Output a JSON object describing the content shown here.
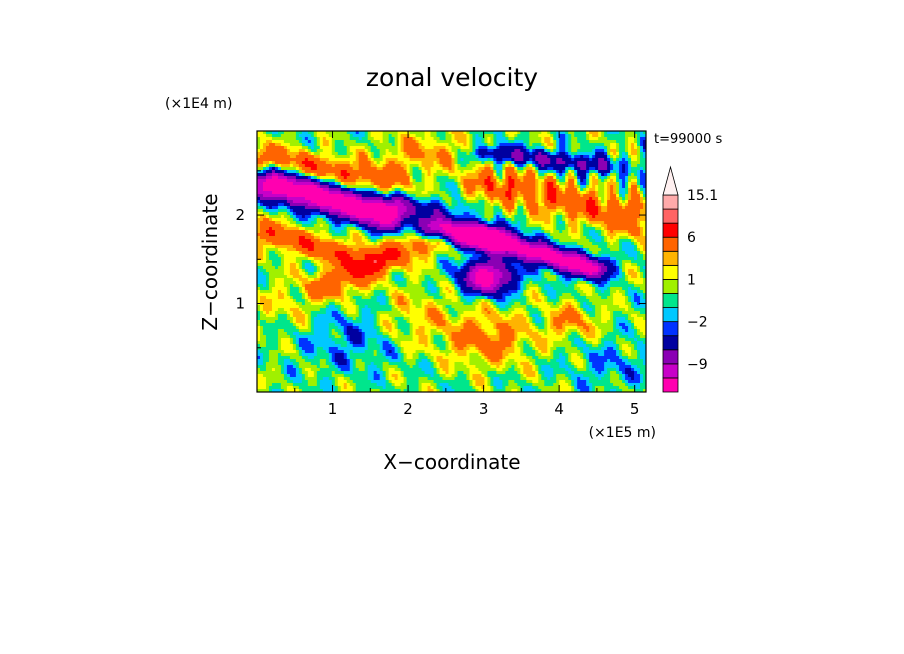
{
  "chart_data": {
    "type": "heatmap",
    "title": "zonal velocity",
    "xlabel": "X−coordinate",
    "ylabel": "Z−coordinate",
    "x_unit": "(×1E5 m)",
    "y_unit": "(×1E4 m)",
    "time_label": "t=99000 s",
    "xlim": [
      0,
      5.15
    ],
    "ylim": [
      0,
      2.95
    ],
    "x_ticks": [
      {
        "v": 1,
        "label": "1"
      },
      {
        "v": 2,
        "label": "2"
      },
      {
        "v": 3,
        "label": "3"
      },
      {
        "v": 4,
        "label": "4"
      },
      {
        "v": 5,
        "label": "5"
      }
    ],
    "y_ticks": [
      {
        "v": 1,
        "label": "1"
      },
      {
        "v": 2,
        "label": "2"
      }
    ],
    "colorbar": {
      "levels": [
        -15,
        -12,
        -9,
        -6,
        -3,
        -2,
        -1,
        0,
        1,
        2,
        3,
        6,
        9,
        12,
        15.1
      ],
      "colors": [
        "#ff00b0",
        "#c800c8",
        "#8a00b4",
        "#0000a0",
        "#0032ff",
        "#00c8ff",
        "#00e68c",
        "#a0f000",
        "#ffff00",
        "#ffb400",
        "#ff6400",
        "#ff0000",
        "#ff6464",
        "#ffaaaa"
      ],
      "extend_max": true,
      "tick_labels": [
        {
          "v": -9,
          "label": "−9"
        },
        {
          "v": -2,
          "label": "−2"
        },
        {
          "v": 1,
          "label": "1"
        },
        {
          "v": 6,
          "label": "6"
        },
        {
          "v": 15.1,
          "label": "15.1"
        }
      ]
    },
    "features": [
      {
        "type": "jet",
        "x0": 0.2,
        "z0": 2.35,
        "x1": 1.7,
        "z1": 2.0,
        "width": 0.16,
        "amp": -16
      },
      {
        "type": "jet",
        "x0": 2.4,
        "z0": 1.85,
        "x1": 3.0,
        "z1": 1.75,
        "width": 0.13,
        "amp": -15
      },
      {
        "type": "jet",
        "x0": 3.0,
        "z0": 1.75,
        "x1": 4.4,
        "z1": 1.4,
        "width": 0.12,
        "amp": -15
      },
      {
        "type": "jet",
        "x0": 3.1,
        "z0": 2.7,
        "x1": 4.6,
        "z1": 2.55,
        "width": 0.1,
        "amp": -6
      },
      {
        "type": "jet",
        "x0": 0.1,
        "z0": 2.65,
        "x1": 1.7,
        "z1": 2.4,
        "width": 0.15,
        "amp": 5
      },
      {
        "type": "jet",
        "x0": 0.1,
        "z0": 1.8,
        "x1": 1.4,
        "z1": 1.5,
        "width": 0.15,
        "amp": 5
      },
      {
        "type": "jet",
        "x0": 1.0,
        "z0": 1.2,
        "x1": 2.3,
        "z1": 1.75,
        "width": 0.16,
        "amp": 5
      },
      {
        "type": "jet",
        "x0": 3.2,
        "z0": 2.35,
        "x1": 5.1,
        "z1": 1.95,
        "width": 0.2,
        "amp": 5
      },
      {
        "type": "jet",
        "x0": 1.6,
        "z0": 2.15,
        "x1": 2.6,
        "z1": 2.05,
        "width": 0.1,
        "amp": -3
      },
      {
        "type": "blob",
        "x": 3.05,
        "z": 1.3,
        "rx": 0.32,
        "rz": 0.18,
        "amp": -15
      },
      {
        "type": "blob",
        "x": 2.2,
        "z": 2.7,
        "rx": 0.55,
        "rz": 0.22,
        "amp": 3
      },
      {
        "type": "blob",
        "x": 3.05,
        "z": 0.6,
        "rx": 0.55,
        "rz": 0.3,
        "amp": 4
      },
      {
        "type": "blob",
        "x": 4.15,
        "z": 0.8,
        "rx": 0.35,
        "rz": 0.2,
        "amp": 3
      },
      {
        "type": "blob",
        "x": 1.2,
        "z": 0.6,
        "rx": 0.6,
        "rz": 0.35,
        "amp": -2.2
      },
      {
        "type": "blob",
        "x": 2.1,
        "z": 0.85,
        "rx": 0.5,
        "rz": 0.3,
        "amp": 2
      },
      {
        "type": "blob",
        "x": 4.7,
        "z": 0.3,
        "rx": 0.5,
        "rz": 0.25,
        "amp": -1.8
      },
      {
        "type": "blob",
        "x": 0.4,
        "z": 1.0,
        "rx": 0.45,
        "rz": 0.3,
        "amp": 1.5
      }
    ]
  }
}
